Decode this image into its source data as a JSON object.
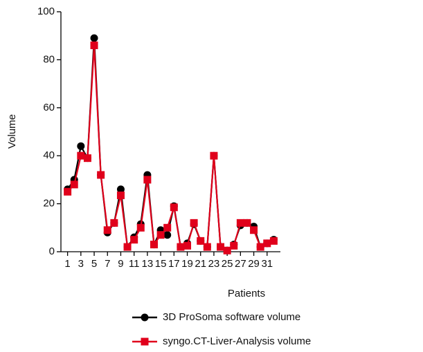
{
  "chart_data": {
    "type": "line",
    "x": [
      1,
      2,
      3,
      4,
      5,
      6,
      7,
      8,
      9,
      10,
      11,
      12,
      13,
      14,
      15,
      16,
      17,
      18,
      19,
      20,
      21,
      22,
      23,
      24,
      25,
      26,
      27,
      28,
      29,
      30,
      31,
      32
    ],
    "xlim": [
      0,
      33
    ],
    "xticks": [
      1,
      3,
      5,
      7,
      9,
      11,
      13,
      15,
      17,
      19,
      21,
      23,
      25,
      27,
      29,
      31
    ],
    "ylim": [
      0,
      100
    ],
    "yticks": [
      0,
      20,
      40,
      60,
      80,
      100
    ],
    "xlabel": "Patients",
    "ylabel": "Volume",
    "series": [
      {
        "name": "3D ProSoma software volume",
        "color": "#000000",
        "marker": "circle",
        "values": [
          26,
          30,
          44,
          39,
          89,
          32,
          8,
          12,
          26,
          2,
          6,
          11.5,
          32,
          3,
          9,
          7,
          19,
          2,
          3.5,
          11.5,
          4.5,
          2,
          40,
          2,
          0.5,
          3,
          11,
          12,
          10.5,
          2,
          3.5,
          5
        ]
      },
      {
        "name": "syngo.CT-Liver-Analysis volume",
        "color": "#e0001b",
        "marker": "square",
        "values": [
          25,
          28,
          40,
          39,
          86,
          32,
          9,
          12,
          23.5,
          2,
          5,
          10,
          30,
          3,
          7,
          10,
          18.5,
          2,
          2.5,
          12,
          4.5,
          2,
          40,
          2,
          0.5,
          2.5,
          12,
          12,
          9,
          2,
          3.5,
          4.5
        ]
      }
    ]
  }
}
